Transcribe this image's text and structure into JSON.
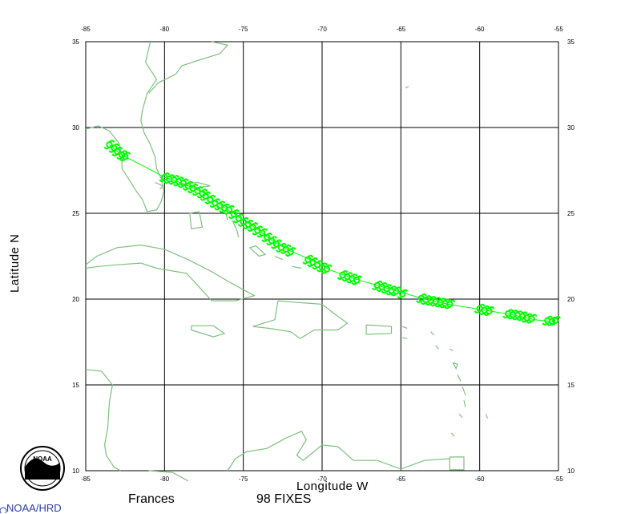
{
  "map": {
    "x_axis_label": "Longitude W",
    "y_axis_label": "Latitude N",
    "lon_ticks": [
      "-85",
      "-80",
      "-75",
      "-70",
      "-65",
      "-60",
      "-55"
    ],
    "lat_ticks": [
      "10",
      "15",
      "20",
      "25",
      "30",
      "35"
    ],
    "lon_range": [
      -85,
      -55
    ],
    "lat_range": [
      10,
      35
    ],
    "grid": true,
    "land_color": "#7fbf7f",
    "track_color": "#00ff00"
  },
  "footer": {
    "storm_name": "Frances",
    "fixes_text": "98 FIXES",
    "org_text": "NOAA/HRD"
  },
  "logo": {
    "text": "NOAA"
  },
  "track": [
    [
      -83.5,
      29.0
    ],
    [
      -83.0,
      28.6
    ],
    [
      -82.5,
      28.3
    ],
    [
      -81.0,
      27.6
    ],
    [
      -80.0,
      27.1
    ],
    [
      -79.3,
      26.9
    ],
    [
      -78.5,
      26.6
    ],
    [
      -77.5,
      26.2
    ],
    [
      -76.8,
      25.7
    ],
    [
      -75.8,
      25.1
    ],
    [
      -74.8,
      24.5
    ],
    [
      -74.0,
      24.0
    ],
    [
      -73.0,
      23.3
    ],
    [
      -72.0,
      22.8
    ],
    [
      -70.5,
      22.2
    ],
    [
      -69.5,
      21.7
    ],
    [
      -68.0,
      21.2
    ],
    [
      -66.5,
      20.8
    ],
    [
      -65.0,
      20.4
    ],
    [
      -63.5,
      20.0
    ],
    [
      -62.0,
      19.7
    ],
    [
      -60.0,
      19.4
    ],
    [
      -58.0,
      19.1
    ],
    [
      -56.5,
      18.8
    ],
    [
      -55.5,
      18.7
    ]
  ],
  "fixes": [
    [
      -83.5,
      29.0
    ],
    [
      -83.2,
      28.8
    ],
    [
      -83.0,
      28.6
    ],
    [
      -82.7,
      28.4
    ],
    [
      -82.5,
      28.3
    ],
    [
      -80.0,
      27.1
    ],
    [
      -79.7,
      27.0
    ],
    [
      -79.4,
      26.95
    ],
    [
      -79.1,
      26.85
    ],
    [
      -78.8,
      26.75
    ],
    [
      -78.5,
      26.6
    ],
    [
      -78.2,
      26.45
    ],
    [
      -77.9,
      26.3
    ],
    [
      -77.6,
      26.15
    ],
    [
      -77.4,
      26.0
    ],
    [
      -77.1,
      25.8
    ],
    [
      -76.8,
      25.6
    ],
    [
      -76.5,
      25.45
    ],
    [
      -76.2,
      25.3
    ],
    [
      -75.9,
      25.2
    ],
    [
      -75.6,
      24.95
    ],
    [
      -75.3,
      24.7
    ],
    [
      -75.0,
      24.5
    ],
    [
      -74.7,
      24.35
    ],
    [
      -74.4,
      24.2
    ],
    [
      -74.1,
      24.0
    ],
    [
      -73.8,
      23.85
    ],
    [
      -73.5,
      23.6
    ],
    [
      -73.2,
      23.4
    ],
    [
      -72.9,
      23.2
    ],
    [
      -72.6,
      23.0
    ],
    [
      -72.3,
      22.9
    ],
    [
      -72.0,
      22.75
    ],
    [
      -70.9,
      22.3
    ],
    [
      -70.6,
      22.15
    ],
    [
      -70.3,
      22.0
    ],
    [
      -70.0,
      21.85
    ],
    [
      -69.7,
      21.75
    ],
    [
      -68.7,
      21.4
    ],
    [
      -68.4,
      21.3
    ],
    [
      -68.1,
      21.2
    ],
    [
      -67.8,
      21.1
    ],
    [
      -66.5,
      20.8
    ],
    [
      -66.2,
      20.7
    ],
    [
      -65.9,
      20.6
    ],
    [
      -65.6,
      20.5
    ],
    [
      -65.3,
      20.45
    ],
    [
      -64.9,
      20.3
    ],
    [
      -63.7,
      20.05
    ],
    [
      -63.4,
      19.95
    ],
    [
      -63.1,
      19.9
    ],
    [
      -62.8,
      19.85
    ],
    [
      -62.5,
      19.8
    ],
    [
      -62.2,
      19.75
    ],
    [
      -61.9,
      19.7
    ],
    [
      -60.0,
      19.45
    ],
    [
      -59.7,
      19.35
    ],
    [
      -59.4,
      19.3
    ],
    [
      -58.2,
      19.15
    ],
    [
      -57.9,
      19.1
    ],
    [
      -57.6,
      19.05
    ],
    [
      -57.3,
      19.0
    ],
    [
      -57.0,
      18.9
    ],
    [
      -56.7,
      18.85
    ],
    [
      -55.7,
      18.75
    ],
    [
      -55.4,
      18.7
    ],
    [
      -55.2,
      18.75
    ]
  ],
  "land": [
    [
      [
        -80.9,
        35.0
      ],
      [
        -81.2,
        33.8
      ],
      [
        -80.5,
        32.8
      ],
      [
        -81.1,
        32.0
      ],
      [
        -81.4,
        31.0
      ],
      [
        -81.5,
        30.4
      ],
      [
        -81.3,
        29.7
      ],
      [
        -80.9,
        29.0
      ],
      [
        -80.6,
        28.3
      ],
      [
        -80.5,
        27.6
      ],
      [
        -80.2,
        27.0
      ],
      [
        -80.05,
        26.3
      ],
      [
        -80.2,
        25.7
      ],
      [
        -80.5,
        25.2
      ],
      [
        -81.1,
        25.1
      ],
      [
        -81.4,
        25.8
      ],
      [
        -81.8,
        26.3
      ],
      [
        -82.2,
        26.9
      ],
      [
        -82.7,
        27.6
      ],
      [
        -82.7,
        28.4
      ],
      [
        -82.9,
        29.1
      ],
      [
        -83.5,
        29.8
      ],
      [
        -84.2,
        30.1
      ],
      [
        -85.0,
        29.9
      ]
    ],
    [
      [
        -77.0,
        35.0
      ],
      [
        -76.0,
        34.8
      ],
      [
        -76.5,
        34.3
      ],
      [
        -77.9,
        33.9
      ],
      [
        -78.9,
        33.6
      ],
      [
        -79.3,
        33.1
      ],
      [
        -80.4,
        32.6
      ],
      [
        -81.0,
        32.0
      ]
    ],
    [
      [
        -85.0,
        22.0
      ],
      [
        -84.3,
        22.5
      ],
      [
        -83.0,
        23.0
      ],
      [
        -81.5,
        23.15
      ],
      [
        -80.0,
        22.9
      ],
      [
        -78.5,
        22.3
      ],
      [
        -77.0,
        21.6
      ],
      [
        -75.9,
        21.0
      ],
      [
        -74.3,
        20.2
      ],
      [
        -75.5,
        19.9
      ],
      [
        -77.0,
        19.9
      ],
      [
        -77.7,
        20.6
      ],
      [
        -78.6,
        21.5
      ],
      [
        -80.5,
        21.8
      ],
      [
        -81.5,
        22.1
      ],
      [
        -83.0,
        22.0
      ],
      [
        -84.2,
        21.9
      ],
      [
        -85.0,
        21.8
      ]
    ],
    [
      [
        -72.8,
        19.9
      ],
      [
        -71.5,
        19.8
      ],
      [
        -70.0,
        19.7
      ],
      [
        -69.3,
        19.2
      ],
      [
        -68.4,
        18.6
      ],
      [
        -69.0,
        18.2
      ],
      [
        -70.5,
        18.2
      ],
      [
        -71.4,
        17.7
      ],
      [
        -72.0,
        18.1
      ],
      [
        -73.4,
        18.3
      ],
      [
        -74.4,
        18.4
      ],
      [
        -73.0,
        18.8
      ],
      [
        -72.8,
        19.9
      ]
    ],
    [
      [
        -67.2,
        18.5
      ],
      [
        -65.6,
        18.4
      ],
      [
        -65.6,
        18.0
      ],
      [
        -67.2,
        17.95
      ],
      [
        -67.2,
        18.5
      ]
    ],
    [
      [
        -78.3,
        18.45
      ],
      [
        -76.9,
        18.45
      ],
      [
        -76.2,
        18.0
      ],
      [
        -76.9,
        17.8
      ],
      [
        -78.3,
        18.2
      ],
      [
        -78.3,
        18.45
      ]
    ],
    [
      [
        -80.6,
        26.8
      ],
      [
        -80.1,
        26.6
      ],
      [
        -80.3,
        26.4
      ]
    ],
    [
      [
        -78.9,
        26.7
      ],
      [
        -77.9,
        26.8
      ],
      [
        -77.1,
        26.6
      ],
      [
        -77.9,
        26.5
      ],
      [
        -78.9,
        26.7
      ]
    ],
    [
      [
        -78.4,
        25.0
      ],
      [
        -77.8,
        25.1
      ],
      [
        -77.6,
        24.2
      ],
      [
        -78.3,
        24.1
      ],
      [
        -78.4,
        25.0
      ]
    ],
    [
      [
        -76.7,
        25.5
      ],
      [
        -76.1,
        25.0
      ],
      [
        -76.0,
        24.6
      ]
    ],
    [
      [
        -75.7,
        24.6
      ],
      [
        -75.4,
        24.0
      ],
      [
        -75.3,
        23.6
      ]
    ],
    [
      [
        -74.6,
        23.0
      ],
      [
        -74.0,
        22.5
      ],
      [
        -73.6,
        22.6
      ],
      [
        -74.2,
        23.1
      ],
      [
        -74.6,
        23.0
      ]
    ],
    [
      [
        -73.0,
        22.5
      ],
      [
        -72.5,
        22.3
      ]
    ],
    [
      [
        -71.9,
        21.9
      ],
      [
        -71.3,
        21.8
      ]
    ],
    [
      [
        -85.0,
        15.9
      ],
      [
        -84.0,
        15.8
      ],
      [
        -83.3,
        15.0
      ],
      [
        -83.5,
        14.0
      ],
      [
        -83.6,
        12.5
      ],
      [
        -83.8,
        11.5
      ],
      [
        -83.7,
        10.9
      ],
      [
        -83.2,
        10.2
      ],
      [
        -82.8,
        10.0
      ]
    ],
    [
      [
        -81.0,
        10.0
      ],
      [
        -79.5,
        9.9
      ],
      [
        -78.5,
        9.4
      ]
    ],
    [
      [
        -76.0,
        10.0
      ],
      [
        -75.5,
        10.7
      ],
      [
        -74.8,
        11.1
      ],
      [
        -73.5,
        11.3
      ],
      [
        -72.3,
        11.9
      ],
      [
        -71.3,
        12.3
      ],
      [
        -71.0,
        11.8
      ],
      [
        -71.6,
        10.9
      ],
      [
        -71.2,
        10.6
      ],
      [
        -70.0,
        11.5
      ],
      [
        -69.0,
        11.4
      ],
      [
        -68.0,
        10.6
      ],
      [
        -66.5,
        10.6
      ],
      [
        -65.0,
        10.1
      ],
      [
        -63.5,
        10.6
      ],
      [
        -61.9,
        10.7
      ]
    ],
    [
      [
        -61.9,
        10.8
      ],
      [
        -61.0,
        10.8
      ],
      [
        -61.0,
        10.05
      ],
      [
        -61.9,
        10.05
      ],
      [
        -61.9,
        10.8
      ]
    ],
    [
      [
        -64.5,
        32.4
      ],
      [
        -64.7,
        32.3
      ]
    ],
    [
      [
        -61.7,
        16.3
      ],
      [
        -61.4,
        16.2
      ],
      [
        -61.5,
        15.95
      ],
      [
        -61.7,
        16.3
      ]
    ],
    [
      [
        -61.4,
        15.6
      ],
      [
        -61.2,
        15.2
      ]
    ],
    [
      [
        -61.1,
        14.9
      ],
      [
        -60.9,
        14.4
      ]
    ],
    [
      [
        -61.0,
        14.1
      ],
      [
        -60.9,
        13.7
      ]
    ],
    [
      [
        -61.3,
        13.3
      ],
      [
        -61.1,
        13.1
      ]
    ],
    [
      [
        -59.6,
        13.3
      ],
      [
        -59.5,
        13.05
      ],
      [
        -59.6,
        13.3
      ]
    ],
    [
      [
        -61.8,
        12.2
      ],
      [
        -61.6,
        12.0
      ]
    ],
    [
      [
        -62.8,
        17.3
      ],
      [
        -62.6,
        17.1
      ]
    ],
    [
      [
        -61.9,
        17.1
      ],
      [
        -61.7,
        17.0
      ]
    ],
    [
      [
        -63.1,
        18.1
      ],
      [
        -62.9,
        17.9
      ]
    ],
    [
      [
        -64.9,
        18.4
      ],
      [
        -64.6,
        18.3
      ]
    ],
    [
      [
        -64.9,
        17.75
      ],
      [
        -64.6,
        17.7
      ]
    ]
  ]
}
